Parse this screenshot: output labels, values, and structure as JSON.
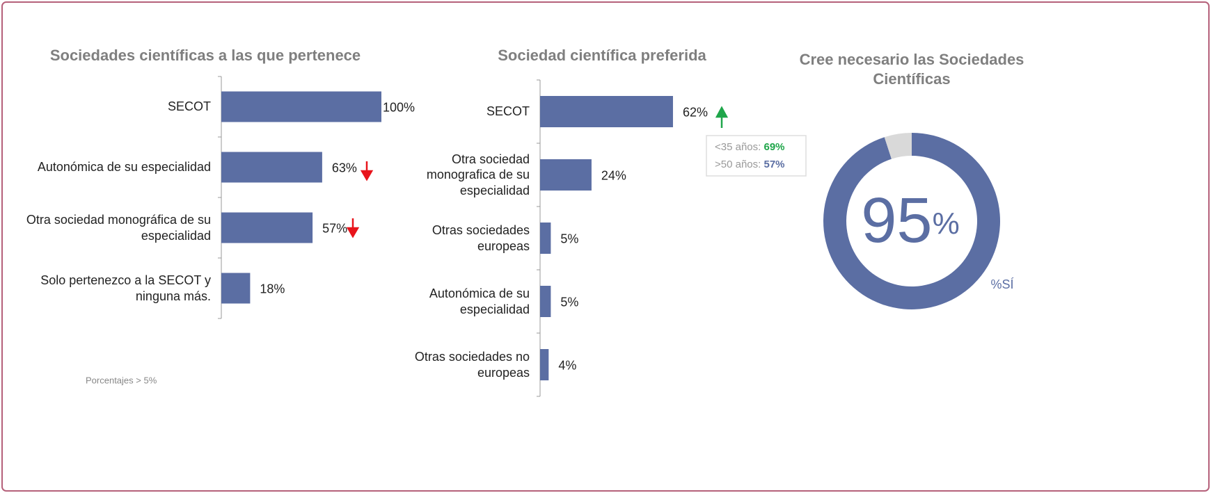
{
  "chart_data": [
    {
      "type": "hbar",
      "title": "Sociedades científicas a las que pertenece",
      "categories": [
        "SECOT",
        "Autonómica de su especialidad",
        "Otra sociedad monográfica de su especialidad",
        "Solo pertenezco a la SECOT y ninguna más."
      ],
      "values": [
        100,
        63,
        57,
        18
      ],
      "value_labels": [
        "100%",
        "63%",
        "57%",
        "18%"
      ],
      "color": "#5b6ea3",
      "xlim": [
        0,
        100
      ],
      "note": "Porcentajes > 5%"
    },
    {
      "type": "hbar",
      "title": "Sociedad científica preferida",
      "categories": [
        "SECOT",
        "Otra sociedad monografica de su especialidad",
        "Otras sociedades europeas",
        "Autonómica de su especialidad",
        "Otras sociedades no europeas"
      ],
      "values": [
        62,
        24,
        5,
        5,
        4
      ],
      "value_labels": [
        "62%",
        "24%",
        "5%",
        "5%",
        "4%"
      ],
      "color": "#5b6ea3",
      "xlim": [
        0,
        100
      ],
      "annotations": [
        {
          "text": "<35 años:",
          "highlight": "69%",
          "color": "#1fa64a"
        },
        {
          "text": ">50 años:",
          "highlight": "57%",
          "color": "#5b6ea3"
        }
      ]
    },
    {
      "type": "donut",
      "title": "Cree necesario las Sociedades Científicas",
      "categories": [
        "%SÍ",
        null
      ],
      "values": [
        95,
        5
      ],
      "colors": [
        "#5b6ea3",
        "#d9d9d9"
      ],
      "unit": "%"
    }
  ]
}
